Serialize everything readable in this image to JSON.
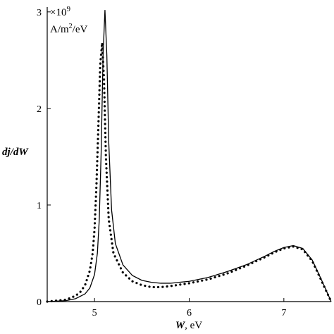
{
  "chart_data": {
    "type": "line",
    "title": "",
    "xlabel_var": "W",
    "xlabel_unit": ", eV",
    "ylabel": "dj/dW",
    "y_multiplier_prefix": "×10",
    "y_multiplier_exp": "9",
    "y_unit_main": "A/m",
    "y_unit_sup": "2",
    "y_unit_tail": "/eV",
    "xlim": [
      4.5,
      7.5
    ],
    "ylim": [
      0,
      3.05
    ],
    "x_ticks": [
      5,
      6,
      7
    ],
    "y_ticks": [
      0,
      1,
      2,
      3
    ],
    "grid": false,
    "series": [
      {
        "style": "solid",
        "x": [
          4.5,
          4.7,
          4.8,
          4.9,
          4.95,
          5.0,
          5.03,
          5.05,
          5.07,
          5.09,
          5.11,
          5.13,
          5.15,
          5.18,
          5.22,
          5.3,
          5.4,
          5.5,
          5.6,
          5.7,
          5.8,
          6.0,
          6.2,
          6.4,
          6.6,
          6.8,
          6.9,
          7.0,
          7.1,
          7.2,
          7.3,
          7.4,
          7.5
        ],
        "y": [
          0.0,
          0.01,
          0.03,
          0.08,
          0.14,
          0.28,
          0.5,
          0.85,
          1.55,
          2.55,
          3.02,
          2.55,
          1.65,
          0.95,
          0.6,
          0.38,
          0.27,
          0.22,
          0.2,
          0.19,
          0.19,
          0.21,
          0.25,
          0.31,
          0.38,
          0.47,
          0.52,
          0.56,
          0.58,
          0.55,
          0.43,
          0.22,
          0.0
        ]
      },
      {
        "style": "dotted",
        "x": [
          4.5,
          4.7,
          4.8,
          4.85,
          4.9,
          4.95,
          4.98,
          5.0,
          5.02,
          5.04,
          5.06,
          5.08,
          5.1,
          5.12,
          5.15,
          5.2,
          5.3,
          5.4,
          5.5,
          5.6,
          5.7,
          5.8,
          6.0,
          6.2,
          6.4,
          6.6,
          6.8,
          6.9,
          7.0,
          7.1,
          7.2,
          7.3,
          7.4,
          7.5
        ],
        "y": [
          0.0,
          0.02,
          0.06,
          0.1,
          0.17,
          0.32,
          0.5,
          0.75,
          1.2,
          1.8,
          2.45,
          2.68,
          2.3,
          1.5,
          0.85,
          0.5,
          0.3,
          0.21,
          0.17,
          0.15,
          0.15,
          0.16,
          0.19,
          0.23,
          0.29,
          0.37,
          0.46,
          0.51,
          0.55,
          0.57,
          0.54,
          0.42,
          0.21,
          0.0
        ]
      }
    ]
  }
}
